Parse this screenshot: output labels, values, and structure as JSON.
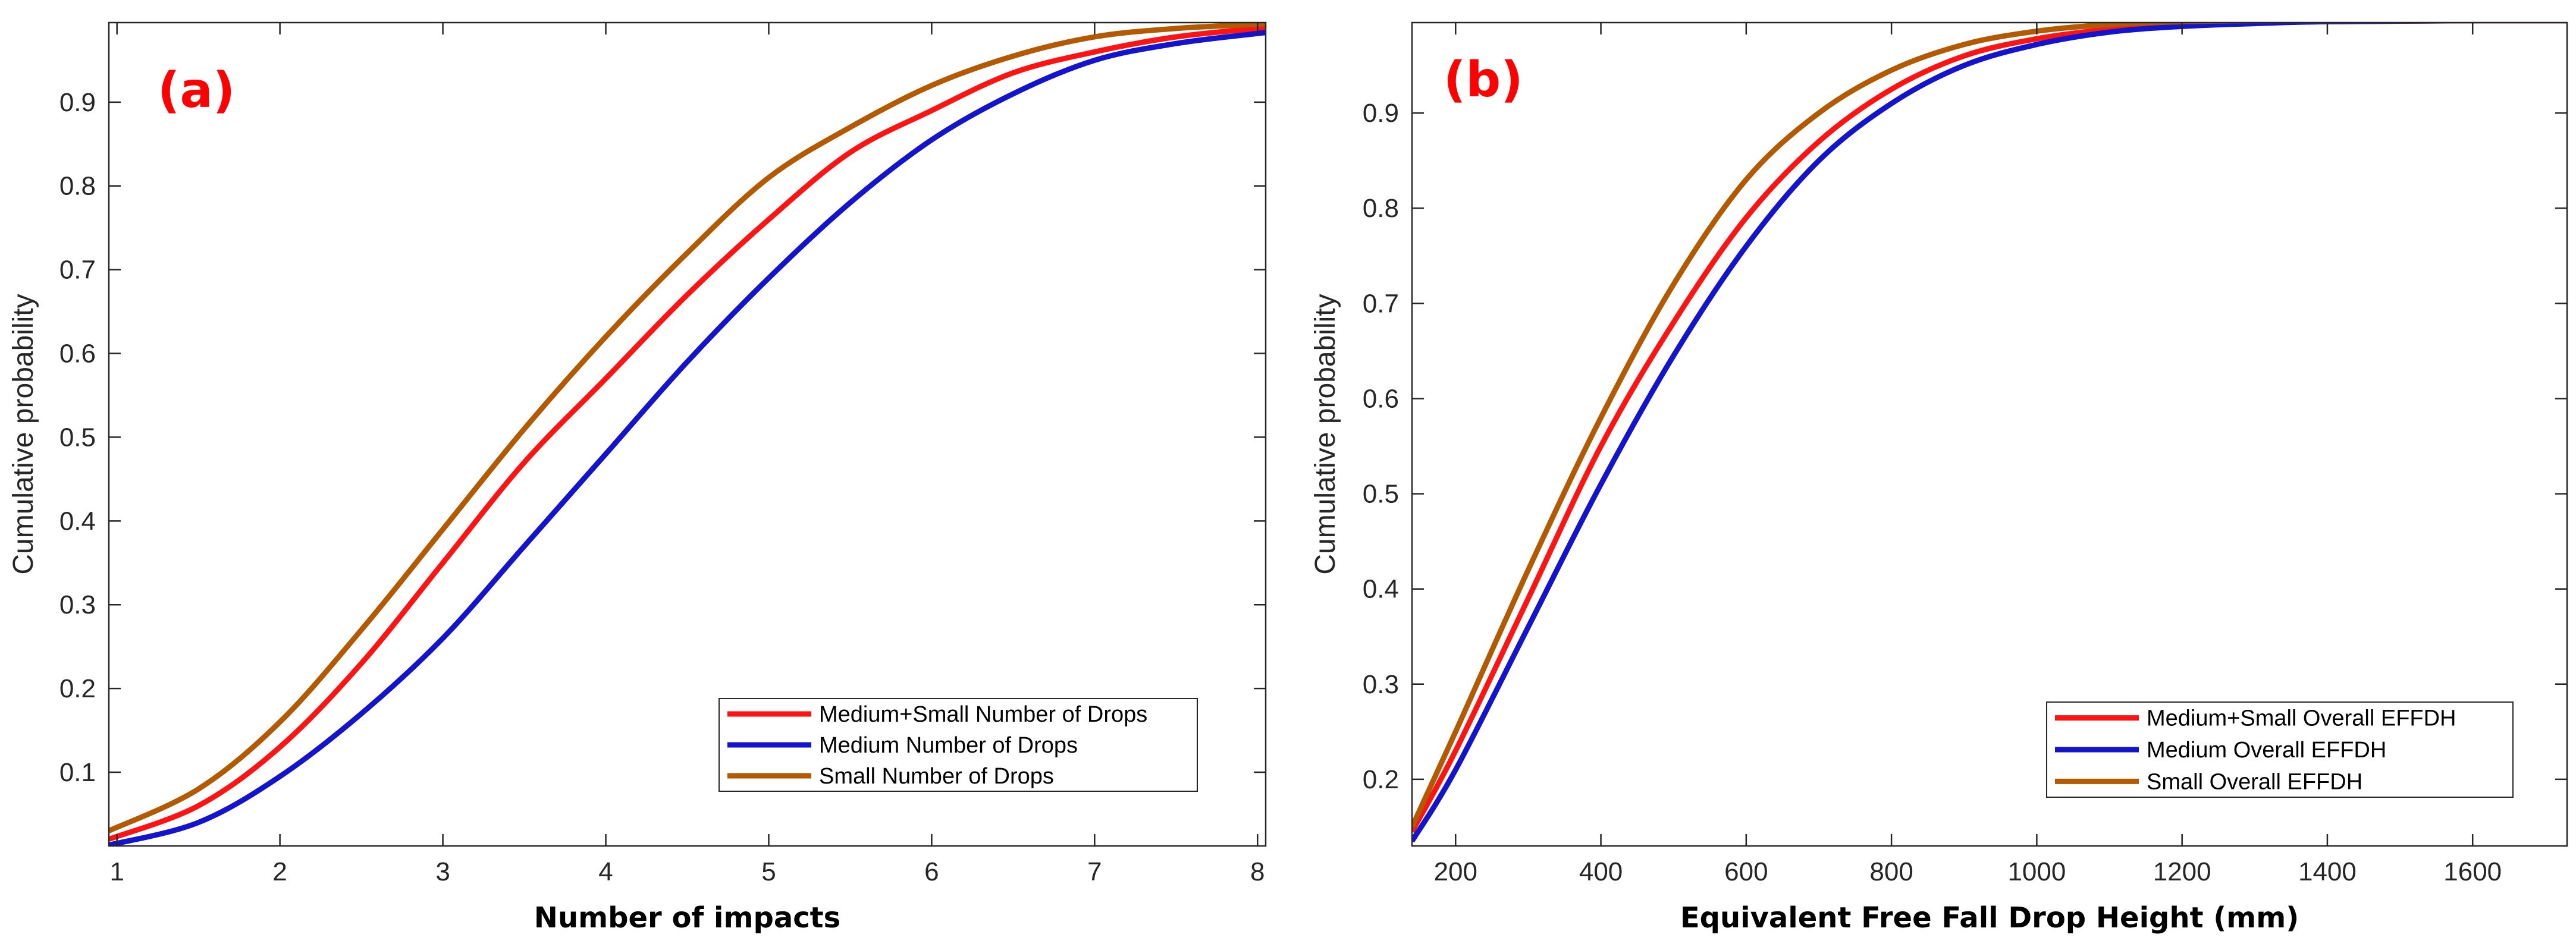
{
  "figure": {
    "background": "#ffffff",
    "axis_color": "#262626",
    "panel_tag_color": "#ff0000"
  },
  "chart_data": [
    {
      "type": "line",
      "panel_label": "(a)",
      "title": "",
      "xlabel": "Number of impacts",
      "ylabel": "Cumulative probability",
      "xlim": [
        0.95,
        8.05
      ],
      "ylim": [
        0.012,
        0.995
      ],
      "xticks": [
        1,
        2,
        3,
        4,
        5,
        6,
        7,
        8
      ],
      "yticks": [
        0.1,
        0.2,
        0.3,
        0.4,
        0.5,
        0.6,
        0.7,
        0.8,
        0.9
      ],
      "legend_position": "bottom-right",
      "grid": false,
      "series": [
        {
          "name": "Medium+Small Number of Drops",
          "color": "#ff1414",
          "x": [
            0.95,
            1.5,
            2,
            2.5,
            3,
            3.5,
            4,
            4.5,
            5,
            5.5,
            6,
            6.5,
            7,
            7.5,
            8,
            8.05
          ],
          "y": [
            0.02,
            0.06,
            0.13,
            0.23,
            0.35,
            0.47,
            0.57,
            0.67,
            0.76,
            0.84,
            0.89,
            0.935,
            0.96,
            0.978,
            0.988,
            0.989
          ]
        },
        {
          "name": "Medium Number of Drops",
          "color": "#1414cc",
          "x": [
            0.95,
            1.5,
            2,
            2.5,
            3,
            3.5,
            4,
            4.5,
            5,
            5.5,
            6,
            6.5,
            7,
            7.5,
            8,
            8.05
          ],
          "y": [
            0.013,
            0.04,
            0.095,
            0.17,
            0.26,
            0.37,
            0.48,
            0.59,
            0.69,
            0.78,
            0.855,
            0.91,
            0.95,
            0.97,
            0.982,
            0.983
          ]
        },
        {
          "name": "Small Number of Drops",
          "color": "#b35900",
          "x": [
            0.95,
            1.5,
            2,
            2.5,
            3,
            3.5,
            4,
            4.5,
            5,
            5.5,
            6,
            6.5,
            7,
            7.5,
            8,
            8.05
          ],
          "y": [
            0.03,
            0.08,
            0.16,
            0.27,
            0.39,
            0.51,
            0.62,
            0.72,
            0.81,
            0.87,
            0.92,
            0.955,
            0.978,
            0.988,
            0.993,
            0.994
          ]
        }
      ]
    },
    {
      "type": "line",
      "panel_label": "(b)",
      "title": "",
      "xlabel": "Equivalent Free Fall Drop Height (mm)",
      "ylabel": "Cumulative probability",
      "xlim": [
        140,
        1730
      ],
      "ylim": [
        0.13,
        0.995
      ],
      "xticks": [
        200,
        400,
        600,
        800,
        1000,
        1200,
        1400,
        1600
      ],
      "yticks": [
        0.2,
        0.3,
        0.4,
        0.5,
        0.6,
        0.7,
        0.8,
        0.9
      ],
      "legend_position": "bottom-right",
      "grid": false,
      "series": [
        {
          "name": "Medium+Small Overall EFFDH",
          "color": "#ff1414",
          "x": [
            140,
            200,
            300,
            400,
            500,
            600,
            700,
            800,
            900,
            1000,
            1100,
            1200,
            1300,
            1400,
            1600,
            1730
          ],
          "y": [
            0.145,
            0.23,
            0.39,
            0.55,
            0.68,
            0.79,
            0.87,
            0.925,
            0.96,
            0.978,
            0.988,
            0.993,
            0.995,
            0.996,
            0.997,
            0.997
          ]
        },
        {
          "name": "Medium Overall EFFDH",
          "color": "#1414cc",
          "x": [
            140,
            200,
            300,
            400,
            500,
            600,
            700,
            800,
            900,
            1000,
            1100,
            1200,
            1300,
            1400,
            1600,
            1730
          ],
          "y": [
            0.135,
            0.21,
            0.36,
            0.51,
            0.645,
            0.76,
            0.85,
            0.91,
            0.95,
            0.972,
            0.985,
            0.991,
            0.994,
            0.996,
            0.997,
            0.997
          ]
        },
        {
          "name": "Small Overall EFFDH",
          "color": "#b35900",
          "x": [
            140,
            200,
            300,
            400,
            500,
            600,
            700,
            800,
            900,
            1000,
            1100,
            1200,
            1300,
            1400,
            1600,
            1730
          ],
          "y": [
            0.15,
            0.25,
            0.42,
            0.58,
            0.72,
            0.83,
            0.9,
            0.945,
            0.972,
            0.986,
            0.993,
            0.996,
            0.997,
            0.997,
            0.997,
            0.997
          ]
        }
      ]
    }
  ]
}
